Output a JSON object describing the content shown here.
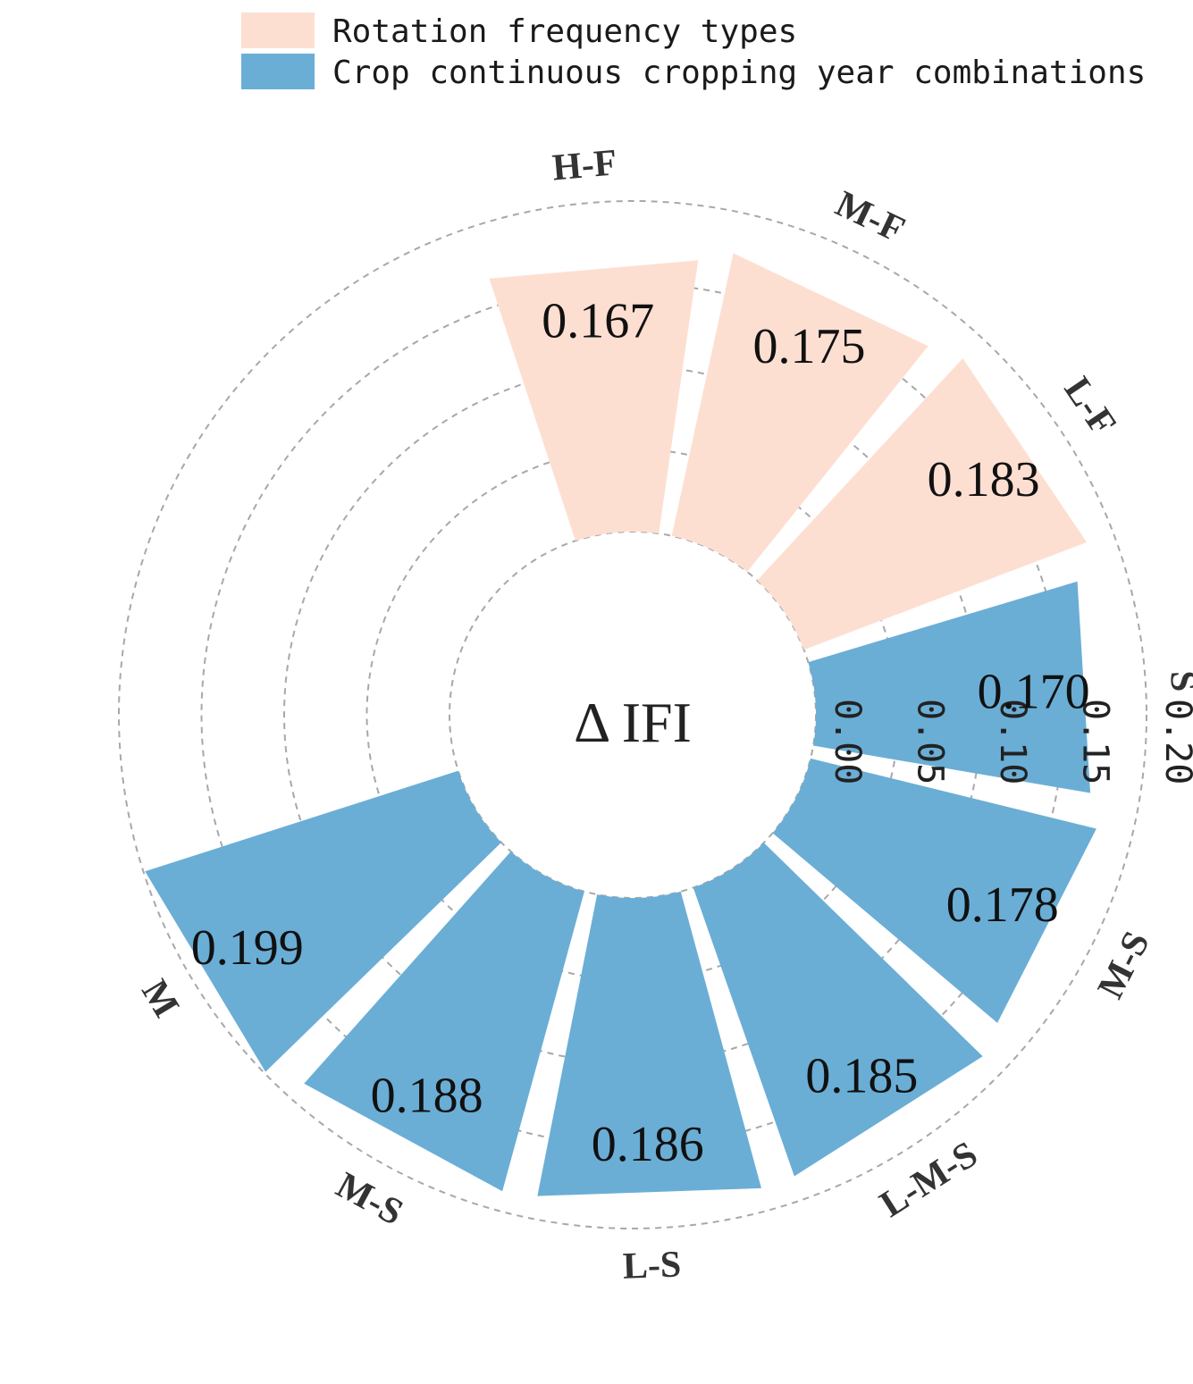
{
  "chart_data": {
    "type": "bar",
    "subtype": "circular-barplot",
    "center_label": "Δ IFI",
    "categories": [
      "H-F",
      "M-F",
      "L-F",
      "S",
      "M-S",
      "L-M-S",
      "L-S",
      "M-S",
      "M"
    ],
    "values": [
      0.167,
      0.175,
      0.183,
      0.17,
      0.178,
      0.185,
      0.186,
      0.188,
      0.199
    ],
    "value_labels": [
      "0.167",
      "0.175",
      "0.183",
      "0.170",
      "0.178",
      "0.185",
      "0.186",
      "0.188",
      "0.199"
    ],
    "groups": [
      "Rotation frequency types",
      "Rotation frequency types",
      "Rotation frequency types",
      "Crop continuous cropping year combinations",
      "Crop continuous cropping year combinations",
      "Crop continuous cropping year combinations",
      "Crop continuous cropping year combinations",
      "Crop continuous cropping year combinations",
      "Crop continuous cropping year combinations"
    ],
    "legend": [
      {
        "name": "Rotation frequency types",
        "color": "#FDDFD2"
      },
      {
        "name": "Crop continuous cropping year combinations",
        "color": "#6AAED6"
      }
    ],
    "legend_position": "top",
    "radial_ticks": [
      "0.00",
      "0.05",
      "0.10",
      "0.15",
      "0.20"
    ],
    "ylim": [
      0,
      0.2
    ],
    "grid": true
  }
}
